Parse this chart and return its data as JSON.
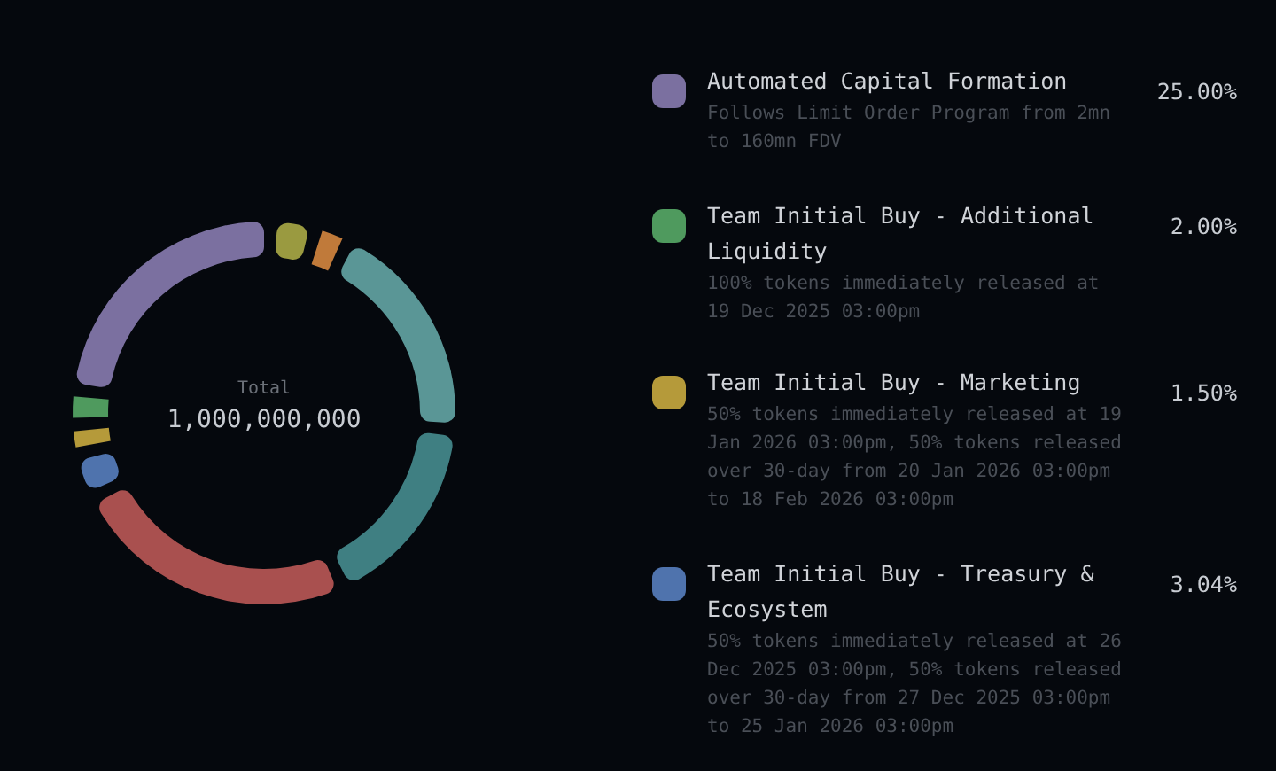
{
  "chart_data": {
    "type": "donut",
    "categories": [
      "Automated Capital Formation",
      "Team Initial Buy - Additional Liquidity",
      "Team Initial Buy - Marketing",
      "Team Initial Buy - Treasury & Ecosystem",
      null,
      null,
      null,
      null,
      null
    ],
    "values": [
      25,
      2,
      1.5,
      3.04,
      26,
      17.46,
      20,
      2,
      3
    ],
    "colors": [
      "#7b70a0",
      "#4f9a5e",
      "#b59a3a",
      "#4f73ad",
      "#a9504f",
      "#3f7f82",
      "#5a9696",
      "#c07a3a",
      "#9a9a40"
    ],
    "value_labels": [
      "25.00%",
      "2.00%",
      "1.50%",
      "3.04%",
      null,
      null,
      null,
      null,
      null
    ],
    "legend": "right",
    "annotations": [
      "Total",
      "1,000,000,000",
      "Follows Limit Order Program from 2mn to 160mn FDV",
      "100% tokens immediately released at 19 Dec 2025 03:00pm",
      "50% tokens immediately released at 19 Jan 2026 03:00pm, 50% tokens released over 30-day from 20 Jan 2026 03:00pm to 18 Feb 2026 03:00pm",
      "50% tokens immediately released at 26 Dec 2025 03:00pm, 50% tokens released over 30-day from 27 Dec 2025 03:00pm to 25 Jan 2026 03:00pm"
    ]
  }
}
